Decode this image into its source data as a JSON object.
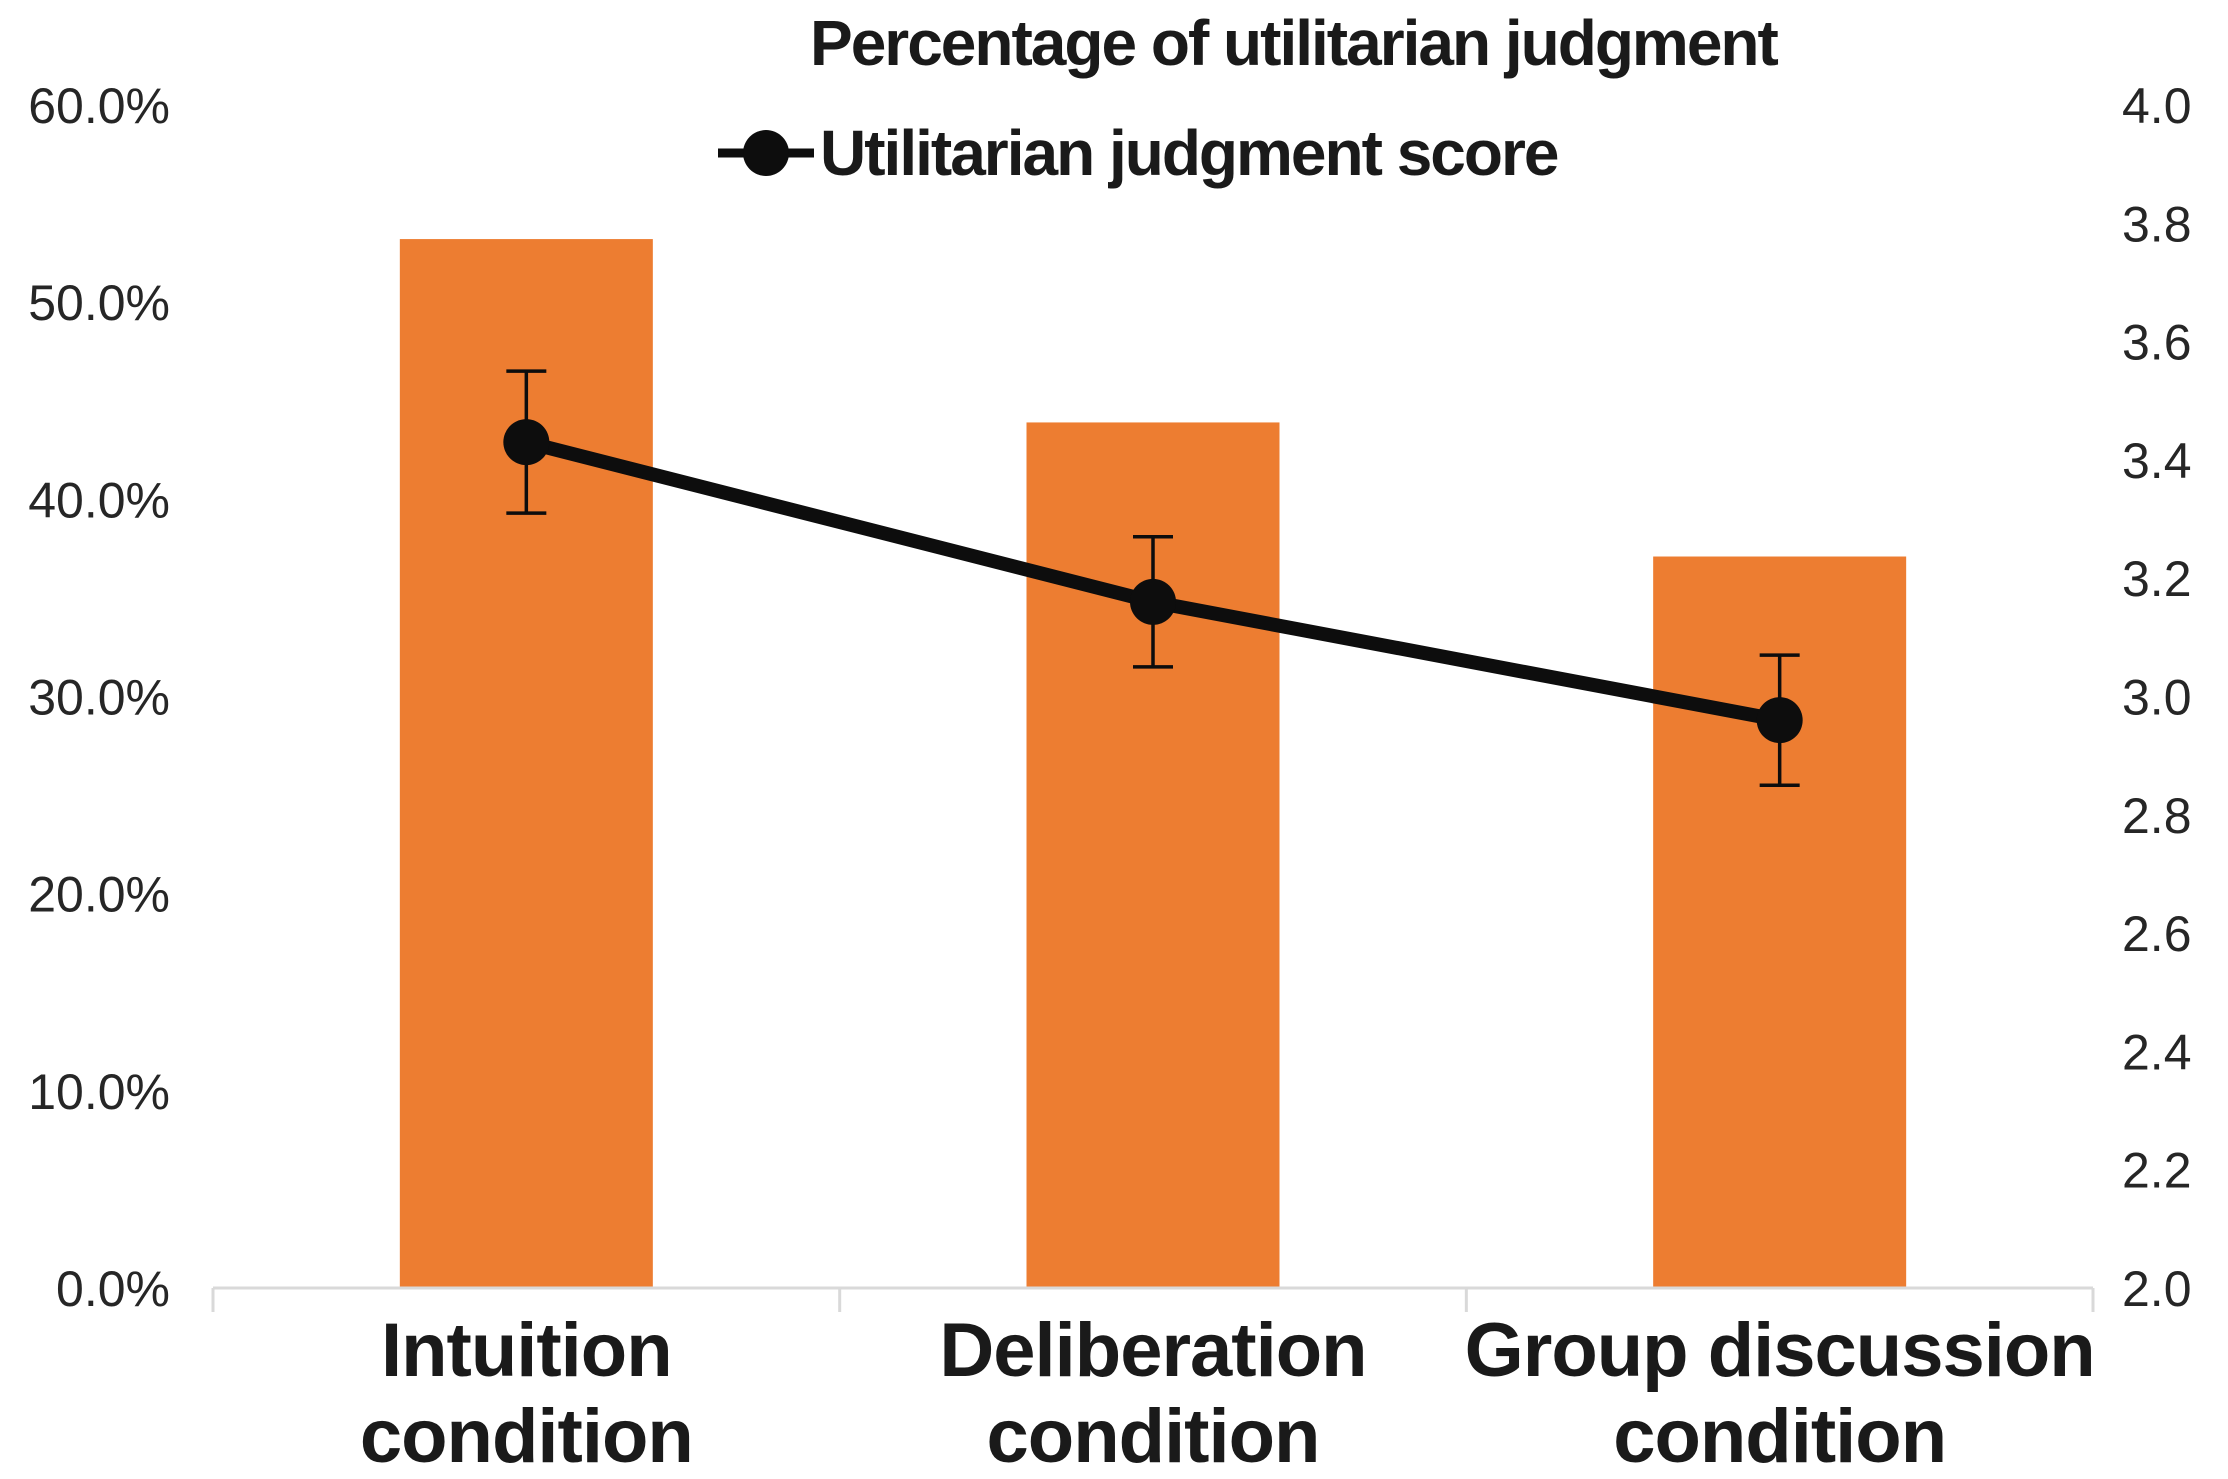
{
  "chart_data": {
    "type": "combo",
    "title": "",
    "categories": [
      "Intuition condition",
      "Deliberation condition",
      "Group discussion condition"
    ],
    "category_label_lines": [
      [
        "Intuition",
        "condition"
      ],
      [
        "Deliberation",
        "condition"
      ],
      [
        "Group discussion",
        "condition"
      ]
    ],
    "series": [
      {
        "name": "Percentage of utilitarian judgment",
        "type": "bar",
        "axis": "left",
        "values": [
          53.2,
          43.9,
          37.1
        ],
        "unit": "%",
        "color": "#ED7D31"
      },
      {
        "name": "Utilitarian judgment score",
        "type": "line",
        "axis": "right",
        "values": [
          3.43,
          3.16,
          2.96
        ],
        "error_bars": [
          0.12,
          0.11,
          0.11
        ],
        "color": "#0d0d0d"
      }
    ],
    "left_axis": {
      "min": 0,
      "max": 60,
      "unit": "%",
      "tick_labels": [
        "60.0%",
        "50.0%",
        "40.0%",
        "30.0%",
        "20.0%",
        "10.0%",
        "0.0%"
      ]
    },
    "right_axis": {
      "min": 2.0,
      "max": 4.0,
      "tick_labels": [
        "4.0",
        "3.8",
        "3.6",
        "3.4",
        "3.2",
        "3.0",
        "2.8",
        "2.6",
        "2.4",
        "2.2",
        "2.0"
      ]
    },
    "legend": {
      "position": "top",
      "items": [
        {
          "label": "Percentage of utilitarian judgment",
          "marker": "square",
          "color": "#ED7D31"
        },
        {
          "label": "Utilitarian judgment score",
          "marker": "line-circle",
          "color": "#0d0d0d"
        }
      ]
    },
    "grid": false,
    "background": "#FFFFFF",
    "axis_line_color": "#D9D9D9",
    "text_color": "#1a1a1a"
  }
}
